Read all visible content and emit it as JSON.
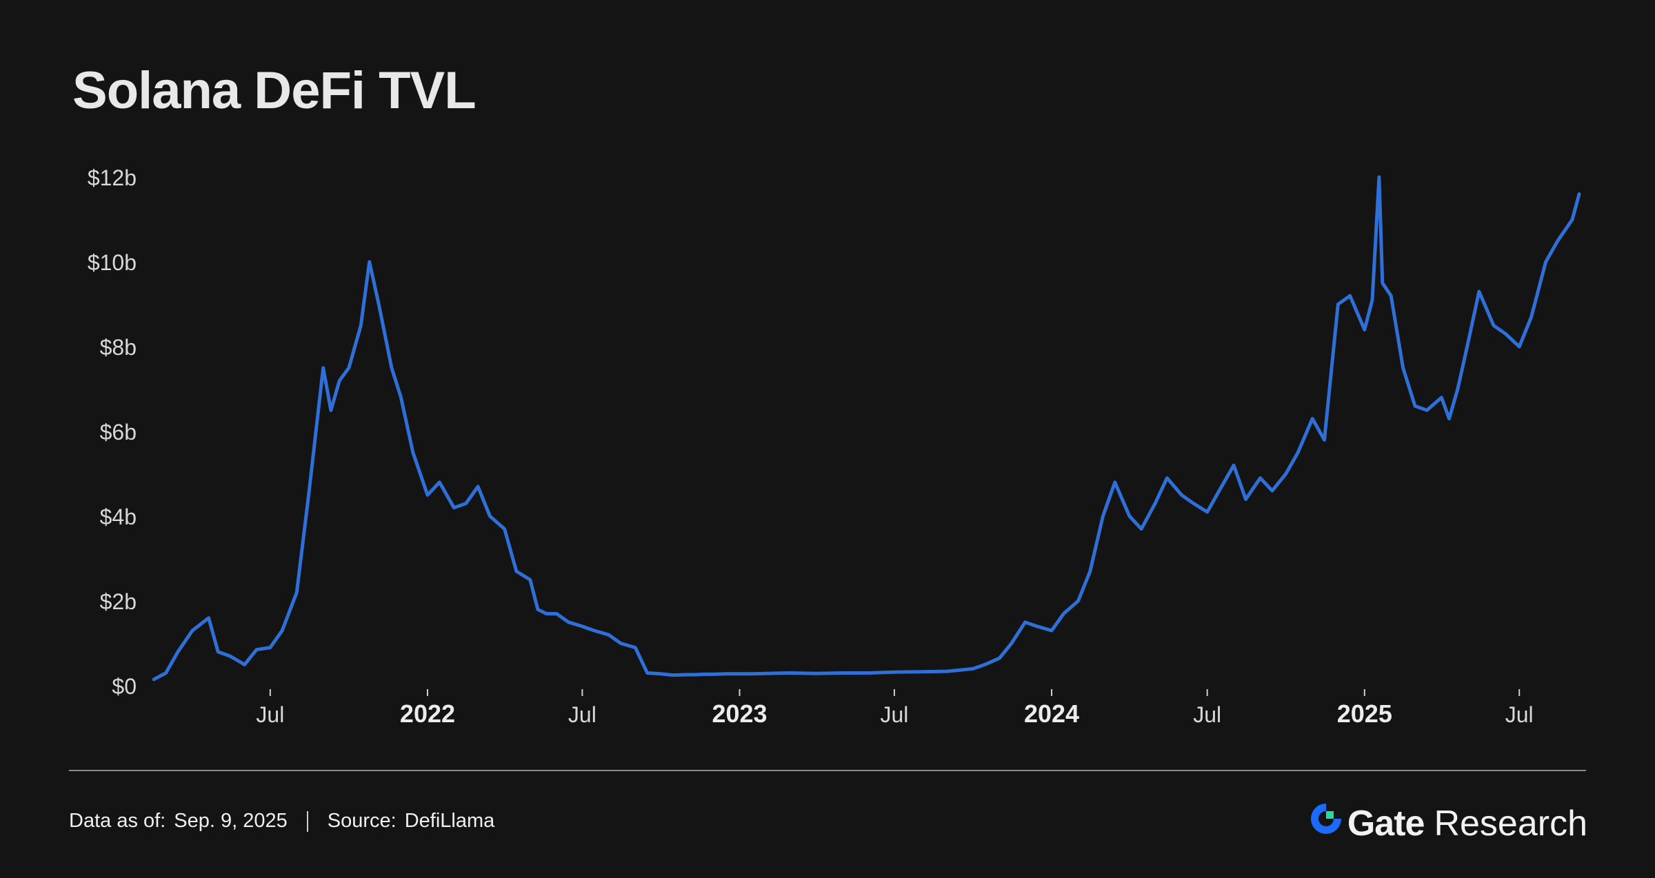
{
  "title": "Solana DeFi TVL",
  "footer": {
    "data_as_of_label": "Data as of:",
    "data_as_of_value": "Sep. 9, 2025",
    "source_label": "Source:",
    "source_value": "DefiLlama"
  },
  "brand": {
    "name": "Gate",
    "suffix": "Research",
    "icon": "gate-logo-icon",
    "colors": {
      "logo_blue": "#1b6bff",
      "logo_green": "#25d9a3"
    }
  },
  "chart_data": {
    "type": "line",
    "title": "Solana DeFi TVL",
    "xlabel": "",
    "ylabel": "",
    "ylim": [
      0,
      12
    ],
    "y_unit": "billion USD",
    "y_ticks": [
      {
        "value": 0,
        "label": "$0"
      },
      {
        "value": 2,
        "label": "$2b"
      },
      {
        "value": 4,
        "label": "$4b"
      },
      {
        "value": 6,
        "label": "$6b"
      },
      {
        "value": 8,
        "label": "$8b"
      },
      {
        "value": 10,
        "label": "$10b"
      },
      {
        "value": 12,
        "label": "$12b"
      }
    ],
    "x_range": [
      "2021-02-14",
      "2025-09-09"
    ],
    "x_ticks": [
      {
        "date": "2021-07-01",
        "label": "Jul",
        "major": false
      },
      {
        "date": "2022-01-01",
        "label": "2022",
        "major": true
      },
      {
        "date": "2022-07-01",
        "label": "Jul",
        "major": false
      },
      {
        "date": "2023-01-01",
        "label": "2023",
        "major": true
      },
      {
        "date": "2023-07-01",
        "label": "Jul",
        "major": false
      },
      {
        "date": "2024-01-01",
        "label": "2024",
        "major": true
      },
      {
        "date": "2024-07-01",
        "label": "Jul",
        "major": false
      },
      {
        "date": "2025-01-01",
        "label": "2025",
        "major": true
      },
      {
        "date": "2025-07-01",
        "label": "Jul",
        "major": false
      }
    ],
    "grid": false,
    "line_color": "#2f6fd8",
    "series": [
      {
        "x": [
          "2021-02-15",
          "2021-03-01",
          "2021-03-15",
          "2021-04-01",
          "2021-04-20",
          "2021-05-01",
          "2021-05-15",
          "2021-06-01",
          "2021-06-15",
          "2021-07-01",
          "2021-07-15",
          "2021-08-01",
          "2021-08-15",
          "2021-09-01",
          "2021-09-10",
          "2021-09-20",
          "2021-10-01",
          "2021-10-15",
          "2021-10-25",
          "2021-11-05",
          "2021-11-10",
          "2021-11-20",
          "2021-12-01",
          "2021-12-15",
          "2022-01-01",
          "2022-01-15",
          "2022-02-01",
          "2022-02-15",
          "2022-03-01",
          "2022-03-15",
          "2022-04-01",
          "2022-04-15",
          "2022-05-01",
          "2022-05-10",
          "2022-05-20",
          "2022-06-01",
          "2022-06-15",
          "2022-07-01",
          "2022-07-15",
          "2022-08-01",
          "2022-08-15",
          "2022-09-01",
          "2022-09-15",
          "2022-10-01",
          "2022-10-15",
          "2022-11-01",
          "2022-11-10",
          "2022-11-20",
          "2022-12-01",
          "2022-12-15",
          "2023-01-01",
          "2023-01-15",
          "2023-02-01",
          "2023-03-01",
          "2023-04-01",
          "2023-05-01",
          "2023-06-01",
          "2023-07-01",
          "2023-08-01",
          "2023-09-01",
          "2023-10-01",
          "2023-10-15",
          "2023-11-01",
          "2023-11-15",
          "2023-12-01",
          "2023-12-15",
          "2024-01-01",
          "2024-01-15",
          "2024-02-01",
          "2024-02-15",
          "2024-03-01",
          "2024-03-15",
          "2024-04-01",
          "2024-04-15",
          "2024-05-01",
          "2024-05-15",
          "2024-06-01",
          "2024-06-15",
          "2024-07-01",
          "2024-07-15",
          "2024-08-01",
          "2024-08-15",
          "2024-09-01",
          "2024-09-15",
          "2024-10-01",
          "2024-10-15",
          "2024-11-01",
          "2024-11-15",
          "2024-12-01",
          "2024-12-15",
          "2025-01-01",
          "2025-01-10",
          "2025-01-18",
          "2025-01-22",
          "2025-02-01",
          "2025-02-15",
          "2025-03-01",
          "2025-03-15",
          "2025-04-01",
          "2025-04-10",
          "2025-04-20",
          "2025-05-01",
          "2025-05-15",
          "2025-06-01",
          "2025-06-15",
          "2025-07-01",
          "2025-07-15",
          "2025-08-01",
          "2025-08-15",
          "2025-09-01",
          "2025-09-09"
        ],
        "y": [
          0.15,
          0.3,
          0.8,
          1.3,
          1.6,
          0.8,
          0.7,
          0.5,
          0.85,
          0.9,
          1.3,
          2.2,
          4.5,
          7.5,
          6.5,
          7.2,
          7.5,
          8.5,
          10.0,
          9.0,
          8.5,
          7.5,
          6.8,
          5.5,
          4.5,
          4.8,
          4.2,
          4.3,
          4.7,
          4.0,
          3.7,
          2.7,
          2.5,
          1.8,
          1.7,
          1.7,
          1.5,
          1.4,
          1.3,
          1.2,
          1.0,
          0.9,
          0.3,
          0.28,
          0.25,
          0.26,
          0.26,
          0.27,
          0.27,
          0.28,
          0.28,
          0.28,
          0.29,
          0.3,
          0.29,
          0.3,
          0.3,
          0.32,
          0.33,
          0.34,
          0.4,
          0.5,
          0.65,
          1.0,
          1.5,
          1.4,
          1.3,
          1.7,
          2.0,
          2.7,
          4.0,
          4.8,
          4.0,
          3.7,
          4.3,
          4.9,
          4.5,
          4.3,
          4.1,
          4.6,
          5.2,
          4.4,
          4.9,
          4.6,
          5.0,
          5.5,
          6.3,
          5.8,
          9.0,
          9.2,
          8.4,
          9.1,
          12.0,
          9.5,
          9.2,
          7.5,
          6.6,
          6.5,
          6.8,
          6.3,
          7.0,
          8.0,
          9.3,
          8.5,
          8.3,
          8.0,
          8.7,
          10.0,
          10.5,
          11.0,
          11.6
        ]
      }
    ]
  }
}
